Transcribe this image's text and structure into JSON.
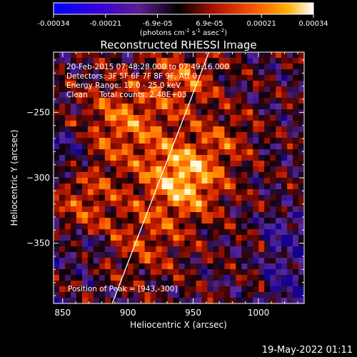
{
  "colorbar": {
    "tick_labels": [
      "-0.00034",
      "-0.00021",
      "-6.9e-05",
      "6.9e-05",
      "0.00021",
      "0.00034"
    ],
    "range": [
      -0.00034,
      0.00034
    ],
    "units_prefix": "(photons cm",
    "units_exp1": "-2",
    "units_mid": " s",
    "units_exp2": "-1",
    "units_mid2": " asec",
    "units_exp3": "-2",
    "units_suffix": ")"
  },
  "plot": {
    "title": "Reconstructed RHESSI Image",
    "xlabel": "Heliocentric X (arcsec)",
    "ylabel": "Heliocentric Y (arcsec)",
    "info_lines": [
      "20-Feb-2015 07:48:28.000 to 07:49:16.000",
      "Detectors: 3F 5F 6F 7F 8F 9F, Att 0",
      "Energy Range: 12.0 - 25.0 keV",
      "Clean     Total counts: 2.48E+03"
    ],
    "peak_label": "Position of Peak = [943,-300]",
    "peak": [
      943,
      -300
    ]
  },
  "footer": {
    "date": "19-May-2022 01:11"
  },
  "chart_data": {
    "type": "heatmap",
    "title": "Reconstructed RHESSI Image",
    "xlabel": "Heliocentric X (arcsec)",
    "ylabel": "Heliocentric Y (arcsec)",
    "xlim": [
      843,
      1035
    ],
    "ylim": [
      -396,
      -204
    ],
    "x_ticks": [
      850,
      900,
      950,
      1000
    ],
    "y_ticks": [
      -250,
      -300,
      -350
    ],
    "color_range": [
      -0.00034,
      0.00034
    ],
    "colormap": "blue-purple-black-red-orange-yellow-white",
    "peak_position": [
      943,
      -300
    ],
    "limb_line": [
      [
        888,
        -396
      ],
      [
        962,
        -204
      ]
    ]
  }
}
